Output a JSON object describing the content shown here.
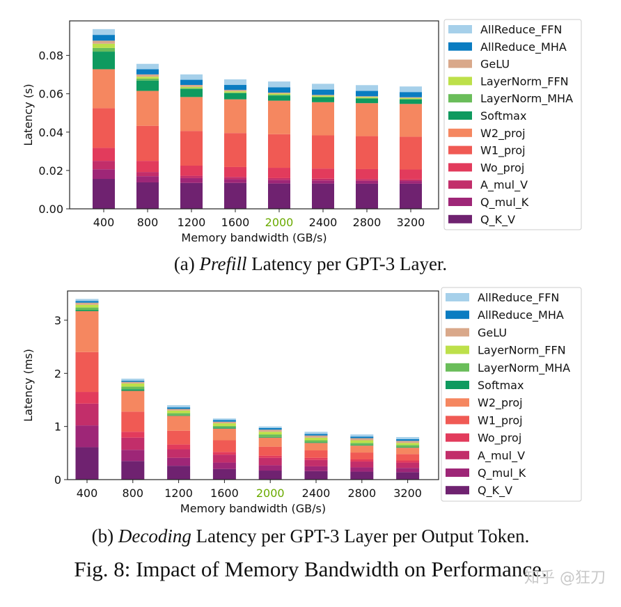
{
  "chart_data": [
    {
      "type": "bar",
      "stacked": true,
      "caption_prefix": "(a) ",
      "caption_em": "Prefill",
      "caption_rest": " Latency per GPT-3 Layer.",
      "xlabel": "Memory bandwidth (GB/s)",
      "ylabel": "Latency (s)",
      "categories": [
        "400",
        "800",
        "1200",
        "1600",
        "2000",
        "2400",
        "2800",
        "3200"
      ],
      "highlight_category": "2000",
      "highlight_color": "#6aaa00",
      "ylim": [
        0,
        0.098
      ],
      "yticks": [
        "0.00",
        "0.02",
        "0.04",
        "0.06",
        "0.08"
      ],
      "legend_position": "right",
      "series": [
        {
          "name": "Q_K_V",
          "color": "#6f2270",
          "values": [
            0.0156,
            0.0138,
            0.0135,
            0.0135,
            0.0132,
            0.0132,
            0.0131,
            0.0131
          ]
        },
        {
          "name": "Q_mul_K",
          "color": "#9e2677",
          "values": [
            0.005,
            0.0032,
            0.0025,
            0.0019,
            0.0018,
            0.0016,
            0.0015,
            0.0014
          ]
        },
        {
          "name": "A_mul_V",
          "color": "#c22e6a",
          "values": [
            0.0044,
            0.0022,
            0.0012,
            0.0012,
            0.001,
            0.0009,
            0.0009,
            0.0008
          ]
        },
        {
          "name": "Wo_proj",
          "color": "#e23b5c",
          "values": [
            0.0068,
            0.0058,
            0.0053,
            0.0052,
            0.0054,
            0.0053,
            0.0052,
            0.0052
          ]
        },
        {
          "name": "W1_proj",
          "color": "#f05a54",
          "values": [
            0.0207,
            0.0183,
            0.0181,
            0.0177,
            0.0175,
            0.0173,
            0.0172,
            0.0171
          ]
        },
        {
          "name": "W2_proj",
          "color": "#f58760",
          "values": [
            0.0203,
            0.0182,
            0.0177,
            0.0176,
            0.0175,
            0.0173,
            0.0172,
            0.0171
          ]
        },
        {
          "name": "Softmax",
          "color": "#0f9a5f",
          "values": [
            0.0092,
            0.0054,
            0.0042,
            0.0032,
            0.0027,
            0.0025,
            0.0024,
            0.0023
          ]
        },
        {
          "name": "LayerNorm_MHA",
          "color": "#6abd5a",
          "values": [
            0.0019,
            0.001,
            0.0005,
            0.0004,
            0.0004,
            0.0004,
            0.0003,
            0.0003
          ]
        },
        {
          "name": "LayerNorm_FFN",
          "color": "#bde04a",
          "values": [
            0.0022,
            0.001,
            0.0006,
            0.0006,
            0.0006,
            0.0005,
            0.0005,
            0.0005
          ]
        },
        {
          "name": "GeLU",
          "color": "#d9a88a",
          "values": [
            0.0016,
            0.0012,
            0.001,
            0.0007,
            0.0005,
            0.0004,
            0.0004,
            0.0004
          ]
        },
        {
          "name": "AllReduce_MHA",
          "color": "#0a7cc1",
          "values": [
            0.003,
            0.0027,
            0.0027,
            0.0026,
            0.0028,
            0.0028,
            0.0028,
            0.0027
          ]
        },
        {
          "name": "AllReduce_FFN",
          "color": "#a6d0ea",
          "values": [
            0.003,
            0.0028,
            0.0028,
            0.0029,
            0.003,
            0.003,
            0.003,
            0.0029
          ]
        }
      ]
    },
    {
      "type": "bar",
      "stacked": true,
      "caption_prefix": "(b) ",
      "caption_em": "Decoding",
      "caption_rest": " Latency per GPT-3 Layer per Output Token.",
      "xlabel": "Memory bandwidth (GB/s)",
      "ylabel": "Latency (ms)",
      "categories": [
        "400",
        "800",
        "1200",
        "1600",
        "2000",
        "2400",
        "2800",
        "3200"
      ],
      "highlight_category": "2000",
      "highlight_color": "#6aaa00",
      "ylim": [
        0,
        3.55
      ],
      "yticks": [
        "0",
        "1",
        "2",
        "3"
      ],
      "legend_position": "right",
      "series": [
        {
          "name": "Q_K_V",
          "color": "#6f2270",
          "values": [
            0.61,
            0.35,
            0.26,
            0.2,
            0.17,
            0.16,
            0.15,
            0.14
          ]
        },
        {
          "name": "Q_mul_K",
          "color": "#9e2677",
          "values": [
            0.41,
            0.21,
            0.15,
            0.12,
            0.1,
            0.09,
            0.08,
            0.08
          ]
        },
        {
          "name": "A_mul_V",
          "color": "#c22e6a",
          "values": [
            0.41,
            0.23,
            0.16,
            0.15,
            0.14,
            0.12,
            0.11,
            0.1
          ]
        },
        {
          "name": "Wo_proj",
          "color": "#e23b5c",
          "values": [
            0.22,
            0.11,
            0.09,
            0.05,
            0.04,
            0.04,
            0.04,
            0.04
          ]
        },
        {
          "name": "W1_proj",
          "color": "#f05a54",
          "values": [
            0.75,
            0.38,
            0.26,
            0.22,
            0.17,
            0.14,
            0.13,
            0.12
          ]
        },
        {
          "name": "W2_proj",
          "color": "#f58760",
          "values": [
            0.77,
            0.39,
            0.28,
            0.22,
            0.17,
            0.14,
            0.13,
            0.12
          ]
        },
        {
          "name": "Softmax",
          "color": "#0f9a5f",
          "values": [
            0.02,
            0.03,
            0.01,
            0.02,
            0.01,
            0.01,
            0.01,
            0.01
          ]
        },
        {
          "name": "LayerNorm_MHA",
          "color": "#6abd5a",
          "values": [
            0.05,
            0.05,
            0.04,
            0.03,
            0.05,
            0.04,
            0.04,
            0.04
          ]
        },
        {
          "name": "LayerNorm_FFN",
          "color": "#bde04a",
          "values": [
            0.05,
            0.06,
            0.05,
            0.05,
            0.05,
            0.05,
            0.05,
            0.04
          ]
        },
        {
          "name": "GeLU",
          "color": "#d9a88a",
          "values": [
            0.04,
            0.03,
            0.03,
            0.03,
            0.04,
            0.04,
            0.04,
            0.04
          ]
        },
        {
          "name": "AllReduce_MHA",
          "color": "#0a7cc1",
          "values": [
            0.03,
            0.02,
            0.03,
            0.03,
            0.03,
            0.03,
            0.03,
            0.03
          ]
        },
        {
          "name": "AllReduce_FFN",
          "color": "#a6d0ea",
          "values": [
            0.04,
            0.04,
            0.04,
            0.03,
            0.03,
            0.04,
            0.04,
            0.04
          ]
        }
      ]
    }
  ],
  "figure_caption": "Fig. 8: Impact of Memory Bandwidth on Performance.",
  "watermark": "知乎 @狂刀"
}
